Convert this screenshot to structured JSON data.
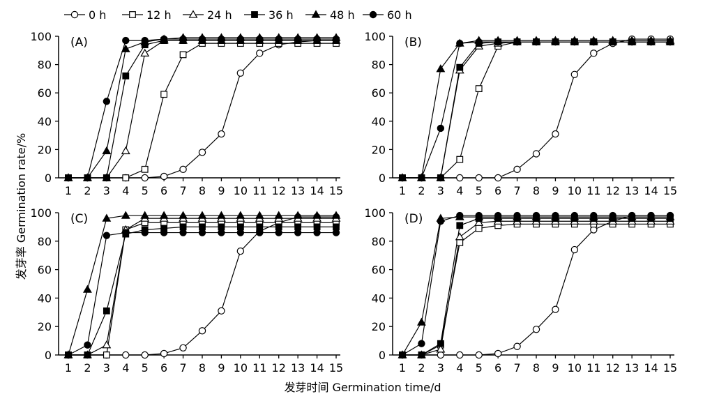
{
  "figure": {
    "ylabel": "发芽率 Germination rate/%",
    "xlabel": "发芽时间 Germination time/d"
  },
  "legend": {
    "entries": [
      {
        "label": "0 h",
        "marker": "circle-open"
      },
      {
        "label": "12 h",
        "marker": "square-open"
      },
      {
        "label": "24 h",
        "marker": "triangle-open"
      },
      {
        "label": "36 h",
        "marker": "square-filled"
      },
      {
        "label": "48 h",
        "marker": "triangle-filled"
      },
      {
        "label": "60 h",
        "marker": "circle-filled"
      }
    ]
  },
  "chart_data": [
    {
      "type": "line",
      "panel_label": "(A)",
      "x": [
        1,
        2,
        3,
        4,
        5,
        6,
        7,
        8,
        9,
        10,
        11,
        12,
        13,
        14,
        15
      ],
      "xlim": [
        1,
        15
      ],
      "ylim": [
        0,
        100
      ],
      "yticks": [
        0,
        20,
        40,
        60,
        80,
        100
      ],
      "series": [
        {
          "name": "0 h",
          "marker": "circle-open",
          "values": [
            0,
            0,
            0,
            0,
            0,
            1,
            6,
            18,
            31,
            74,
            88,
            94,
            96,
            97,
            97
          ]
        },
        {
          "name": "12 h",
          "marker": "square-open",
          "values": [
            0,
            0,
            0,
            0,
            6,
            59,
            87,
            95,
            95,
            95,
            95,
            95,
            95,
            95,
            95
          ]
        },
        {
          "name": "24 h",
          "marker": "triangle-open",
          "values": [
            0,
            0,
            0,
            19,
            88,
            97,
            97,
            97,
            97,
            97,
            97,
            97,
            97,
            97,
            97
          ]
        },
        {
          "name": "36 h",
          "marker": "square-filled",
          "values": [
            0,
            0,
            0,
            72,
            94,
            97,
            97,
            97,
            97,
            97,
            97,
            97,
            97,
            97,
            97
          ]
        },
        {
          "name": "48 h",
          "marker": "triangle-filled",
          "values": [
            0,
            0,
            19,
            91,
            96,
            98,
            99,
            99,
            99,
            99,
            99,
            99,
            99,
            99,
            99
          ]
        },
        {
          "name": "60 h",
          "marker": "circle-filled",
          "values": [
            0,
            0,
            54,
            97,
            97,
            98,
            98,
            98,
            98,
            98,
            98,
            98,
            98,
            98,
            98
          ]
        }
      ]
    },
    {
      "type": "line",
      "panel_label": "(B)",
      "x": [
        1,
        2,
        3,
        4,
        5,
        6,
        7,
        8,
        9,
        10,
        11,
        12,
        13,
        14,
        15
      ],
      "xlim": [
        1,
        15
      ],
      "ylim": [
        0,
        100
      ],
      "yticks": [
        0,
        20,
        40,
        60,
        80,
        100
      ],
      "series": [
        {
          "name": "0 h",
          "marker": "circle-open",
          "values": [
            0,
            0,
            0,
            0,
            0,
            0,
            6,
            17,
            31,
            73,
            88,
            95,
            98,
            98,
            98
          ]
        },
        {
          "name": "12 h",
          "marker": "square-open",
          "values": [
            0,
            0,
            0,
            13,
            63,
            93,
            96,
            96,
            96,
            96,
            96,
            96,
            96,
            96,
            96
          ]
        },
        {
          "name": "24 h",
          "marker": "triangle-open",
          "values": [
            0,
            0,
            0,
            76,
            93,
            95,
            96,
            96,
            96,
            96,
            96,
            96,
            96,
            96,
            96
          ]
        },
        {
          "name": "36 h",
          "marker": "square-filled",
          "values": [
            0,
            0,
            0,
            78,
            95,
            96,
            96,
            96,
            96,
            96,
            96,
            96,
            96,
            96,
            96
          ]
        },
        {
          "name": "48 h",
          "marker": "triangle-filled",
          "values": [
            0,
            0,
            77,
            95,
            97,
            97,
            97,
            97,
            97,
            97,
            97,
            97,
            97,
            97,
            97
          ]
        },
        {
          "name": "60 h",
          "marker": "circle-filled",
          "values": [
            0,
            0,
            35,
            95,
            96,
            96,
            96,
            96,
            96,
            96,
            96,
            96,
            96,
            96,
            96
          ]
        }
      ]
    },
    {
      "type": "line",
      "panel_label": "(C)",
      "x": [
        1,
        2,
        3,
        4,
        5,
        6,
        7,
        8,
        9,
        10,
        11,
        12,
        13,
        14,
        15
      ],
      "xlim": [
        1,
        15
      ],
      "ylim": [
        0,
        100
      ],
      "yticks": [
        0,
        20,
        40,
        60,
        80,
        100
      ],
      "series": [
        {
          "name": "0 h",
          "marker": "circle-open",
          "values": [
            0,
            0,
            0,
            0,
            0,
            1,
            5,
            17,
            31,
            73,
            87,
            93,
            97,
            97,
            97
          ]
        },
        {
          "name": "12 h",
          "marker": "square-open",
          "values": [
            0,
            0,
            0,
            88,
            93,
            93,
            93,
            93,
            93,
            93,
            93,
            93,
            93,
            93,
            93
          ]
        },
        {
          "name": "24 h",
          "marker": "triangle-open",
          "values": [
            0,
            0,
            7,
            88,
            96,
            96,
            96,
            96,
            96,
            96,
            96,
            96,
            96,
            96,
            96
          ]
        },
        {
          "name": "36 h",
          "marker": "square-filled",
          "values": [
            0,
            0,
            31,
            85,
            88,
            89,
            90,
            90,
            90,
            90,
            90,
            90,
            90,
            90,
            90
          ]
        },
        {
          "name": "48 h",
          "marker": "triangle-filled",
          "values": [
            0,
            46,
            96,
            98,
            98,
            98,
            98,
            98,
            98,
            98,
            98,
            98,
            98,
            98,
            98
          ]
        },
        {
          "name": "60 h",
          "marker": "circle-filled",
          "values": [
            0,
            7,
            84,
            86,
            86,
            86,
            86,
            86,
            86,
            86,
            86,
            86,
            86,
            86,
            86
          ]
        }
      ]
    },
    {
      "type": "line",
      "panel_label": "(D)",
      "x": [
        1,
        2,
        3,
        4,
        5,
        6,
        7,
        8,
        9,
        10,
        11,
        12,
        13,
        14,
        15
      ],
      "xlim": [
        1,
        15
      ],
      "ylim": [
        0,
        100
      ],
      "yticks": [
        0,
        20,
        40,
        60,
        80,
        100
      ],
      "series": [
        {
          "name": "0 h",
          "marker": "circle-open",
          "values": [
            0,
            0,
            0,
            0,
            0,
            1,
            6,
            18,
            32,
            74,
            88,
            94,
            98,
            98,
            98
          ]
        },
        {
          "name": "12 h",
          "marker": "square-open",
          "values": [
            0,
            0,
            7,
            79,
            89,
            91,
            92,
            92,
            92,
            92,
            92,
            92,
            92,
            92,
            92
          ]
        },
        {
          "name": "24 h",
          "marker": "triangle-open",
          "values": [
            0,
            0,
            4,
            83,
            93,
            94,
            94,
            94,
            94,
            94,
            94,
            94,
            94,
            94,
            94
          ]
        },
        {
          "name": "36 h",
          "marker": "square-filled",
          "values": [
            0,
            0,
            8,
            91,
            96,
            96,
            96,
            96,
            96,
            96,
            96,
            96,
            96,
            96,
            96
          ]
        },
        {
          "name": "48 h",
          "marker": "triangle-filled",
          "values": [
            0,
            23,
            96,
            97,
            97,
            97,
            97,
            97,
            97,
            97,
            97,
            97,
            97,
            97,
            97
          ]
        },
        {
          "name": "60 h",
          "marker": "circle-filled",
          "values": [
            0,
            8,
            94,
            98,
            98,
            98,
            98,
            98,
            98,
            98,
            98,
            98,
            98,
            98,
            98
          ]
        }
      ]
    }
  ]
}
